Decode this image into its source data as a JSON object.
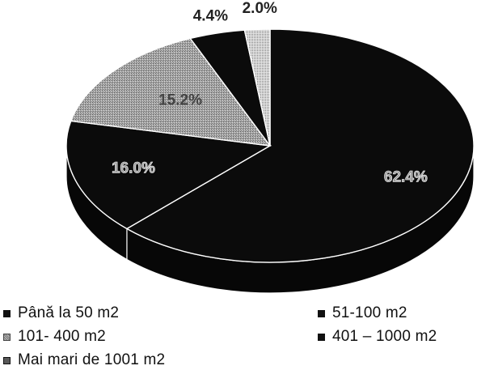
{
  "chart_data": {
    "type": "pie",
    "title": "",
    "categories": [
      "Până la 50 m2",
      "51-100 m2",
      "101- 400 m2",
      "401 – 1000 m2",
      "Mai mari de 1001 m2"
    ],
    "values": [
      62.4,
      16.0,
      15.2,
      4.4,
      2.0
    ],
    "labels": [
      "62.4%",
      "16.0%",
      "15.2%",
      "4.4%",
      "2.0%"
    ],
    "style": "3d",
    "legend_placement": "bottom",
    "colors": [
      "#0b0b0b",
      "#0b0b0b",
      "#9a9a9a",
      "#0b0b0b",
      "#cfcfcf"
    ]
  }
}
